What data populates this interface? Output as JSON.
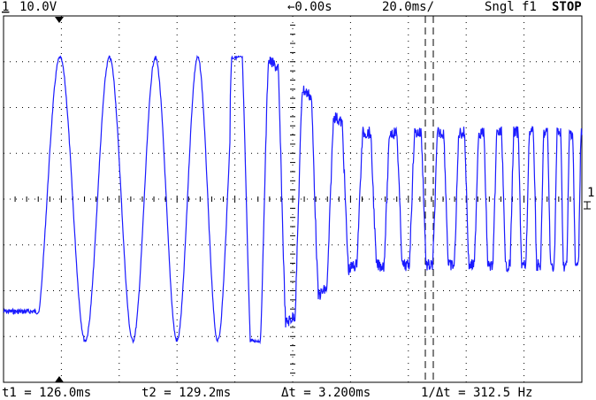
{
  "header": {
    "channel": "1",
    "scale": "10.0V",
    "delay": "←0.00s",
    "timebase": "20.0ms/",
    "mode": "Sngl",
    "trigger": "f1",
    "status": "STOP"
  },
  "footer": {
    "t1": "t1 = 126.0ms",
    "t2": "t2 = 129.2ms",
    "delta": "Δt = 3.200ms",
    "freq": "1/Δt = 312.5 Hz"
  },
  "marker": "1"
}
